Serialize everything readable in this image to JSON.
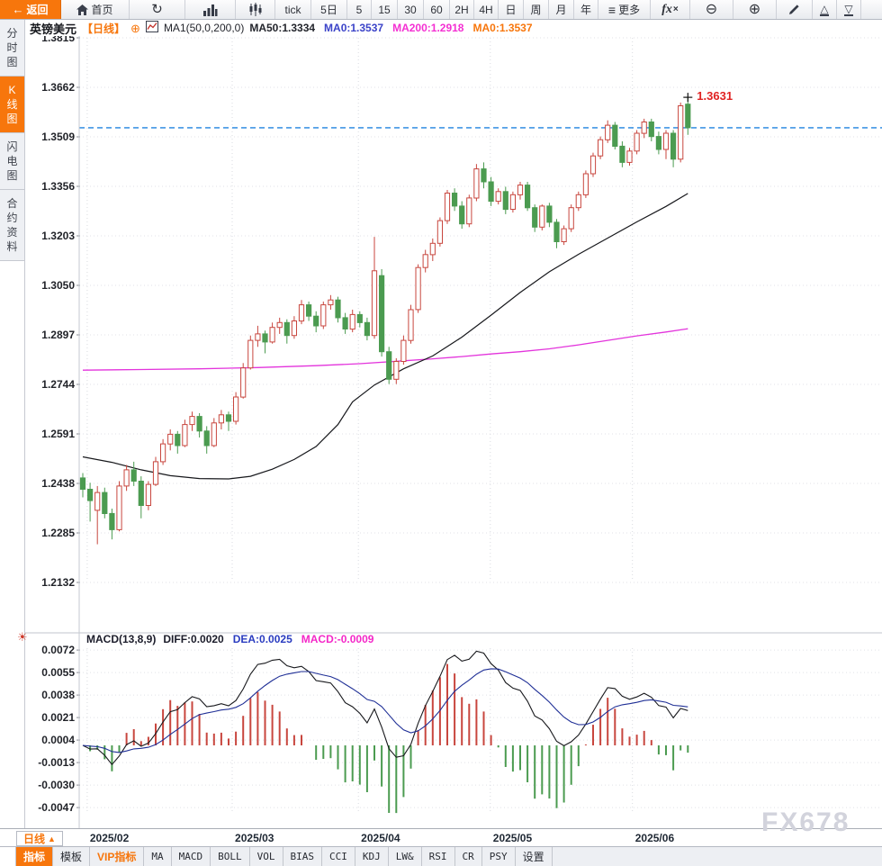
{
  "accent_color": "#f7760c",
  "top_toolbar": {
    "items": [
      {
        "name": "back-button",
        "label": "返回",
        "icon": "arrow-left",
        "style": "primary",
        "w": 68
      },
      {
        "name": "home-button",
        "label": "首页",
        "icon": "home",
        "w": 76
      },
      {
        "name": "refresh-button",
        "icon": "refresh",
        "w": 62
      },
      {
        "name": "bar-chart-button",
        "icon": "bar-chart",
        "w": 56
      },
      {
        "name": "candlestick-button",
        "icon": "candlestick",
        "w": 44
      },
      {
        "name": "period-tick-button",
        "label": "tick",
        "w": 40
      },
      {
        "name": "period-5d-button",
        "label": "5日",
        "w": 40
      },
      {
        "name": "period-5-button",
        "label": "5",
        "w": 27
      },
      {
        "name": "period-15-button",
        "label": "15",
        "w": 29
      },
      {
        "name": "period-30-button",
        "label": "30",
        "w": 29
      },
      {
        "name": "period-60-button",
        "label": "60",
        "w": 29
      },
      {
        "name": "period-2h-button",
        "label": "2H",
        "w": 27
      },
      {
        "name": "period-4h-button",
        "label": "4H",
        "w": 27
      },
      {
        "name": "period-day-button",
        "label": "日",
        "w": 28
      },
      {
        "name": "period-week-button",
        "label": "周",
        "w": 28
      },
      {
        "name": "period-month-button",
        "label": "月",
        "w": 28
      },
      {
        "name": "period-year-button",
        "label": "年",
        "w": 27
      },
      {
        "name": "more-button",
        "label": "更多",
        "icon": "menu",
        "w": 58
      },
      {
        "name": "indicator-fx-button",
        "icon": "fx",
        "w": 44
      },
      {
        "name": "zoom-out-button",
        "icon": "zoom-out",
        "w": 48
      },
      {
        "name": "zoom-in-button",
        "icon": "zoom-in",
        "w": 48
      },
      {
        "name": "draw-button",
        "icon": "pencil",
        "w": 40
      },
      {
        "name": "collapse-up-button",
        "icon": "triangle-up",
        "w": 27
      },
      {
        "name": "collapse-down-button",
        "icon": "triangle-down",
        "w": 27
      }
    ]
  },
  "sidebar": {
    "items": [
      {
        "name": "sidebar-item-time-chart",
        "label": "分时图",
        "active": false
      },
      {
        "name": "sidebar-item-kline-chart",
        "label": "K线图",
        "active": true
      },
      {
        "name": "sidebar-item-lightning-chart",
        "label": "闪电图",
        "active": false
      },
      {
        "name": "sidebar-item-contract-info",
        "label": "合约资料",
        "active": false
      }
    ]
  },
  "chart_header": {
    "symbol": "英镑美元",
    "period_tag": "【日线】",
    "ma_params": "MA1(50,0,200,0)",
    "ma_values": [
      {
        "text": "MA50:1.3334",
        "color": "#23252c"
      },
      {
        "text": "MA0:1.3537",
        "color": "#3b43c8"
      },
      {
        "text": "MA200:1.2918",
        "color": "#f42fd2"
      },
      {
        "text": "MA0:1.3537",
        "color": "#f7760c"
      }
    ]
  },
  "macd_header": {
    "params": "MACD(13,8,9)",
    "values": [
      {
        "text": "DIFF:0.0020",
        "color": "#1b1c2a"
      },
      {
        "text": "DEA:0.0025",
        "color": "#2a3cc0"
      },
      {
        "text": "MACD:-0.0009",
        "color": "#f428c8"
      }
    ]
  },
  "watermark": "FX678",
  "bottom_axis": {
    "period_button": "日线",
    "period_button_arrow": "▲"
  },
  "bottom_toolbar": {
    "tabs": [
      {
        "name": "tab-indicators",
        "label": "指标",
        "style": "active"
      },
      {
        "name": "tab-templates",
        "label": "模板",
        "style": ""
      },
      {
        "name": "tab-vip-indicators",
        "label": "VIP指标",
        "style": "vip"
      },
      {
        "name": "tab-ma",
        "label": "MA",
        "style": "mono"
      },
      {
        "name": "tab-macd",
        "label": "MACD",
        "style": "mono"
      },
      {
        "name": "tab-boll",
        "label": "BOLL",
        "style": "mono"
      },
      {
        "name": "tab-vol",
        "label": "VOL",
        "style": "mono"
      },
      {
        "name": "tab-bias",
        "label": "BIAS",
        "style": "mono"
      },
      {
        "name": "tab-cci",
        "label": "CCI",
        "style": "mono"
      },
      {
        "name": "tab-kdj",
        "label": "KDJ",
        "style": "mono"
      },
      {
        "name": "tab-lw",
        "label": "LW&",
        "style": "mono"
      },
      {
        "name": "tab-rsi",
        "label": "RSI",
        "style": "mono"
      },
      {
        "name": "tab-cr",
        "label": "CR",
        "style": "mono"
      },
      {
        "name": "tab-psy",
        "label": "PSY",
        "style": "mono"
      },
      {
        "name": "tab-settings",
        "label": "设置",
        "style": ""
      }
    ]
  },
  "chart_data": {
    "type": "candlestick+macd",
    "title": "英镑美元 日线 (GBP/USD daily)",
    "y_axis_price": [
      "1.3815",
      "1.3662",
      "1.3509",
      "1.3356",
      "1.3203",
      "1.3050",
      "1.2897",
      "1.2744",
      "1.2591",
      "1.2438",
      "1.2285",
      "1.2132"
    ],
    "y_axis_macd": [
      "0.0072",
      "0.0055",
      "0.0038",
      "0.0021",
      "0.0004",
      "-0.0013",
      "-0.0030",
      "-0.0047"
    ],
    "month_ticks": [
      {
        "label": "2025/02",
        "index": 0.6
      },
      {
        "label": "2025/03",
        "index": 20.5
      },
      {
        "label": "2025/04",
        "index": 37.8
      },
      {
        "label": "2025/05",
        "index": 55.9
      },
      {
        "label": "2025/06",
        "index": 75.4
      }
    ],
    "current_price_line": 1.3537,
    "last_high_label": "1.3631",
    "up_color": "#c8463e",
    "down_color": "#4b9b50",
    "ma50_color": "#17181c",
    "ma200_color": "#e334dc",
    "diff_color": "#17181c",
    "dea_color": "#1f2f96",
    "price_line_color": "#1e82df",
    "candles": [
      [
        1.2455,
        1.247,
        1.2395,
        1.242
      ],
      [
        1.242,
        1.244,
        1.232,
        1.2385
      ],
      [
        1.2355,
        1.243,
        1.225,
        1.241
      ],
      [
        1.241,
        1.2425,
        1.233,
        1.2345
      ],
      [
        1.2345,
        1.236,
        1.2265,
        1.2295
      ],
      [
        1.2295,
        1.2445,
        1.229,
        1.243
      ],
      [
        1.243,
        1.2495,
        1.2415,
        1.248
      ],
      [
        1.248,
        1.2505,
        1.243,
        1.2445
      ],
      [
        1.2445,
        1.246,
        1.233,
        1.237
      ],
      [
        1.237,
        1.2445,
        1.2355,
        1.2435
      ],
      [
        1.2435,
        1.252,
        1.243,
        1.2505
      ],
      [
        1.2505,
        1.2575,
        1.2495,
        1.256
      ],
      [
        1.256,
        1.2605,
        1.254,
        1.259
      ],
      [
        1.259,
        1.26,
        1.253,
        1.2555
      ],
      [
        1.2555,
        1.2635,
        1.255,
        1.262
      ],
      [
        1.262,
        1.266,
        1.26,
        1.2645
      ],
      [
        1.2645,
        1.2655,
        1.258,
        1.26
      ],
      [
        1.26,
        1.2615,
        1.253,
        1.2555
      ],
      [
        1.2555,
        1.264,
        1.255,
        1.2625
      ],
      [
        1.2625,
        1.2665,
        1.2605,
        1.265
      ],
      [
        1.265,
        1.266,
        1.26,
        1.263
      ],
      [
        1.263,
        1.272,
        1.262,
        1.2705
      ],
      [
        1.2705,
        1.281,
        1.27,
        1.2795
      ],
      [
        1.2795,
        1.2895,
        1.279,
        1.288
      ],
      [
        1.288,
        1.2925,
        1.286,
        1.29
      ],
      [
        1.29,
        1.291,
        1.284,
        1.2875
      ],
      [
        1.2875,
        1.2935,
        1.287,
        1.292
      ],
      [
        1.292,
        1.295,
        1.29,
        1.2935
      ],
      [
        1.2935,
        1.2945,
        1.287,
        1.2895
      ],
      [
        1.2895,
        1.2955,
        1.2885,
        1.294
      ],
      [
        1.294,
        1.3005,
        1.293,
        1.299
      ],
      [
        1.299,
        1.3,
        1.294,
        1.2955
      ],
      [
        1.2955,
        1.297,
        1.2905,
        1.2925
      ],
      [
        1.2925,
        1.3,
        1.2915,
        1.299
      ],
      [
        1.299,
        1.302,
        1.2975,
        1.3005
      ],
      [
        1.3005,
        1.3015,
        1.2935,
        1.295
      ],
      [
        1.295,
        1.2965,
        1.29,
        1.2915
      ],
      [
        1.2915,
        1.2975,
        1.2905,
        1.296
      ],
      [
        1.296,
        1.297,
        1.292,
        1.2935
      ],
      [
        1.2935,
        1.295,
        1.288,
        1.2895
      ],
      [
        1.2895,
        1.32,
        1.2885,
        1.3095
      ],
      [
        1.308,
        1.31,
        1.283,
        1.2845
      ],
      [
        1.2845,
        1.286,
        1.2745,
        1.276
      ],
      [
        1.276,
        1.2825,
        1.2745,
        1.2815
      ],
      [
        1.2815,
        1.2895,
        1.2805,
        1.288
      ],
      [
        1.288,
        1.299,
        1.287,
        1.2975
      ],
      [
        1.2975,
        1.3115,
        1.2965,
        1.3105
      ],
      [
        1.3105,
        1.316,
        1.309,
        1.3145
      ],
      [
        1.3145,
        1.3195,
        1.3125,
        1.318
      ],
      [
        1.318,
        1.326,
        1.317,
        1.325
      ],
      [
        1.325,
        1.3345,
        1.324,
        1.3335
      ],
      [
        1.3335,
        1.335,
        1.328,
        1.3295
      ],
      [
        1.3295,
        1.331,
        1.3225,
        1.324
      ],
      [
        1.324,
        1.333,
        1.323,
        1.332
      ],
      [
        1.332,
        1.3425,
        1.331,
        1.341
      ],
      [
        1.341,
        1.343,
        1.335,
        1.337
      ],
      [
        1.337,
        1.3385,
        1.3295,
        1.331
      ],
      [
        1.331,
        1.335,
        1.33,
        1.334
      ],
      [
        1.334,
        1.3355,
        1.327,
        1.3285
      ],
      [
        1.3285,
        1.334,
        1.3275,
        1.333
      ],
      [
        1.333,
        1.337,
        1.3315,
        1.336
      ],
      [
        1.336,
        1.337,
        1.328,
        1.329
      ],
      [
        1.329,
        1.33,
        1.3215,
        1.323
      ],
      [
        1.323,
        1.33,
        1.322,
        1.3295
      ],
      [
        1.3295,
        1.3305,
        1.323,
        1.3245
      ],
      [
        1.3245,
        1.3255,
        1.3165,
        1.3185
      ],
      [
        1.3185,
        1.3235,
        1.3175,
        1.3225
      ],
      [
        1.3225,
        1.33,
        1.3215,
        1.329
      ],
      [
        1.329,
        1.334,
        1.328,
        1.333
      ],
      [
        1.333,
        1.3405,
        1.332,
        1.3395
      ],
      [
        1.3395,
        1.346,
        1.3385,
        1.345
      ],
      [
        1.345,
        1.351,
        1.344,
        1.35
      ],
      [
        1.35,
        1.356,
        1.349,
        1.3545
      ],
      [
        1.3545,
        1.3555,
        1.347,
        1.348
      ],
      [
        1.348,
        1.3495,
        1.3415,
        1.343
      ],
      [
        1.343,
        1.3475,
        1.342,
        1.3465
      ],
      [
        1.3465,
        1.353,
        1.3455,
        1.352
      ],
      [
        1.352,
        1.3565,
        1.3505,
        1.3555
      ],
      [
        1.3555,
        1.3565,
        1.3495,
        1.351
      ],
      [
        1.351,
        1.3525,
        1.3455,
        1.347
      ],
      [
        1.347,
        1.353,
        1.344,
        1.352
      ],
      [
        1.352,
        1.353,
        1.3415,
        1.344
      ],
      [
        1.344,
        1.3615,
        1.343,
        1.3605
      ],
      [
        1.361,
        1.3631,
        1.3515,
        1.3537
      ]
    ],
    "ma50_points": [
      [
        0,
        1.252
      ],
      [
        4,
        1.2503
      ],
      [
        8,
        1.248
      ],
      [
        12,
        1.2462
      ],
      [
        16,
        1.2453
      ],
      [
        20,
        1.2452
      ],
      [
        23,
        1.246
      ],
      [
        26,
        1.2482
      ],
      [
        29,
        1.2512
      ],
      [
        32,
        1.2552
      ],
      [
        35,
        1.262
      ],
      [
        37,
        1.269
      ],
      [
        40,
        1.2742
      ],
      [
        44,
        1.2792
      ],
      [
        48,
        1.2832
      ],
      [
        52,
        1.289
      ],
      [
        56,
        1.2958
      ],
      [
        60,
        1.3028
      ],
      [
        64,
        1.3092
      ],
      [
        68,
        1.3146
      ],
      [
        72,
        1.3196
      ],
      [
        76,
        1.3246
      ],
      [
        80,
        1.3294
      ],
      [
        83,
        1.3334
      ]
    ],
    "ma200_points": [
      [
        0,
        1.2788
      ],
      [
        8,
        1.279
      ],
      [
        16,
        1.2792
      ],
      [
        24,
        1.2796
      ],
      [
        32,
        1.2802
      ],
      [
        38,
        1.2808
      ],
      [
        44,
        1.2817
      ],
      [
        48,
        1.2823
      ],
      [
        52,
        1.283
      ],
      [
        56,
        1.2838
      ],
      [
        60,
        1.2845
      ],
      [
        64,
        1.2854
      ],
      [
        68,
        1.2866
      ],
      [
        72,
        1.288
      ],
      [
        76,
        1.2894
      ],
      [
        80,
        1.2906
      ],
      [
        83,
        1.2916
      ]
    ]
  }
}
